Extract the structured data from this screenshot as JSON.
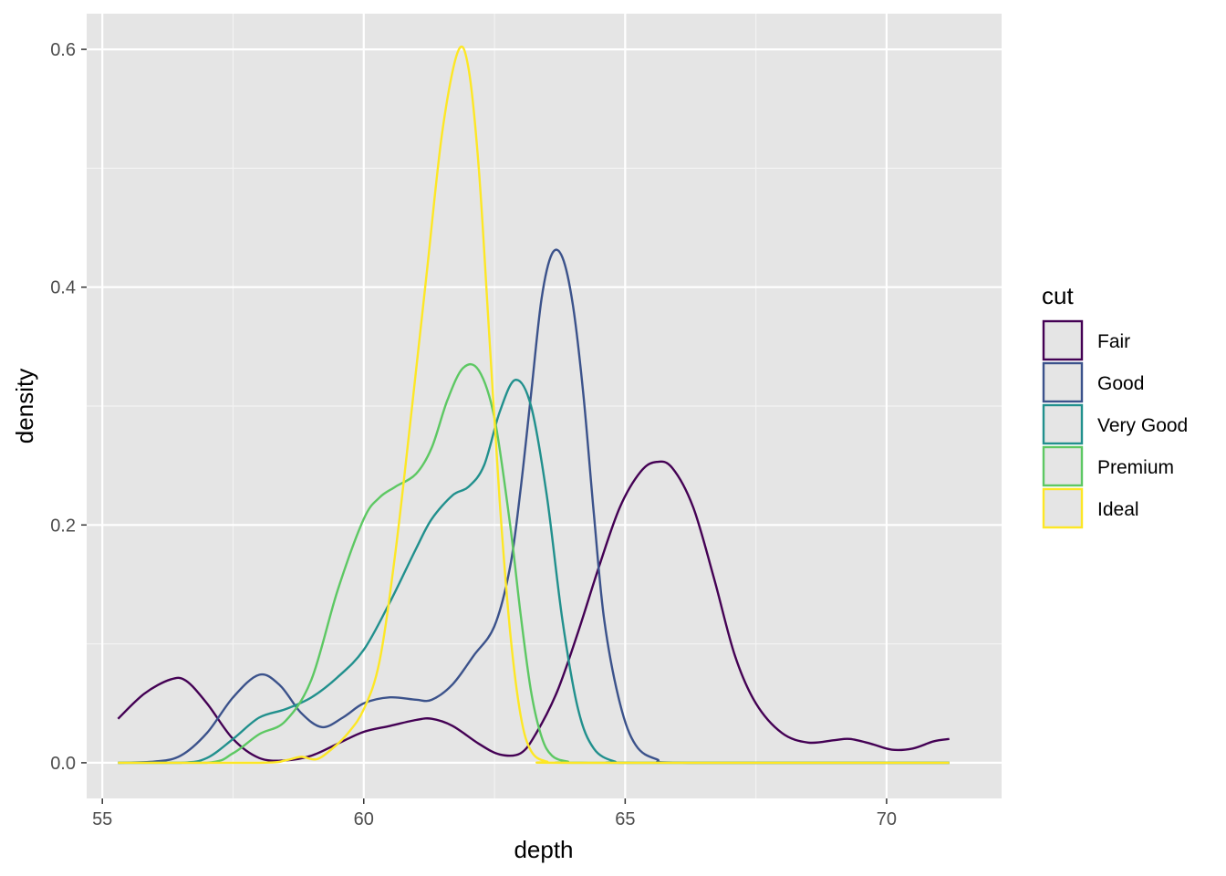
{
  "chart_data": {
    "type": "line",
    "xlabel": "depth",
    "ylabel": "density",
    "xlim": [
      54.7,
      72.2
    ],
    "ylim": [
      -0.03,
      0.63
    ],
    "x_ticks": [
      55,
      60,
      65,
      70
    ],
    "x_tick_labels": [
      "55",
      "60",
      "65",
      "70"
    ],
    "y_ticks": [
      0.0,
      0.2,
      0.4,
      0.6
    ],
    "y_tick_labels": [
      "0.0",
      "0.2",
      "0.4",
      "0.6"
    ],
    "grid": true,
    "panel_background": "#e5e5e5",
    "legend": {
      "title": "cut",
      "placement": "right"
    },
    "series": [
      {
        "name": "Fair",
        "color": "#440154",
        "points": [
          [
            55.3,
            0.037
          ],
          [
            55.8,
            0.058
          ],
          [
            56.3,
            0.07
          ],
          [
            56.6,
            0.069
          ],
          [
            57.0,
            0.05
          ],
          [
            57.5,
            0.02
          ],
          [
            58.0,
            0.004
          ],
          [
            58.5,
            0.002
          ],
          [
            59.0,
            0.006
          ],
          [
            59.5,
            0.016
          ],
          [
            60.0,
            0.026
          ],
          [
            60.5,
            0.031
          ],
          [
            61.0,
            0.036
          ],
          [
            61.3,
            0.037
          ],
          [
            61.7,
            0.031
          ],
          [
            62.2,
            0.016
          ],
          [
            62.6,
            0.007
          ],
          [
            63.0,
            0.008
          ],
          [
            63.3,
            0.025
          ],
          [
            63.7,
            0.06
          ],
          [
            64.1,
            0.11
          ],
          [
            64.5,
            0.165
          ],
          [
            64.9,
            0.215
          ],
          [
            65.3,
            0.245
          ],
          [
            65.6,
            0.253
          ],
          [
            65.9,
            0.248
          ],
          [
            66.3,
            0.215
          ],
          [
            66.7,
            0.155
          ],
          [
            67.1,
            0.09
          ],
          [
            67.5,
            0.05
          ],
          [
            68.0,
            0.025
          ],
          [
            68.5,
            0.017
          ],
          [
            69.0,
            0.019
          ],
          [
            69.3,
            0.02
          ],
          [
            69.7,
            0.016
          ],
          [
            70.1,
            0.011
          ],
          [
            70.5,
            0.012
          ],
          [
            70.9,
            0.018
          ],
          [
            71.2,
            0.02
          ]
        ]
      },
      {
        "name": "Good",
        "color": "#3b528b",
        "points": [
          [
            55.3,
            0.0
          ],
          [
            56.0,
            0.001
          ],
          [
            56.5,
            0.006
          ],
          [
            57.0,
            0.025
          ],
          [
            57.5,
            0.055
          ],
          [
            58.0,
            0.074
          ],
          [
            58.4,
            0.065
          ],
          [
            58.8,
            0.042
          ],
          [
            59.2,
            0.03
          ],
          [
            59.6,
            0.038
          ],
          [
            60.0,
            0.05
          ],
          [
            60.5,
            0.055
          ],
          [
            61.0,
            0.053
          ],
          [
            61.3,
            0.053
          ],
          [
            61.7,
            0.066
          ],
          [
            62.1,
            0.09
          ],
          [
            62.5,
            0.115
          ],
          [
            62.8,
            0.165
          ],
          [
            63.0,
            0.23
          ],
          [
            63.2,
            0.31
          ],
          [
            63.4,
            0.39
          ],
          [
            63.6,
            0.428
          ],
          [
            63.8,
            0.425
          ],
          [
            64.0,
            0.385
          ],
          [
            64.2,
            0.31
          ],
          [
            64.4,
            0.21
          ],
          [
            64.6,
            0.12
          ],
          [
            64.9,
            0.05
          ],
          [
            65.2,
            0.015
          ],
          [
            65.6,
            0.003
          ],
          [
            66.2,
            0.0
          ],
          [
            71.2,
            0.0
          ]
        ]
      },
      {
        "name": "Very Good",
        "color": "#21908d",
        "points": [
          [
            55.3,
            0.0
          ],
          [
            56.5,
            0.0
          ],
          [
            57.0,
            0.004
          ],
          [
            57.5,
            0.02
          ],
          [
            58.0,
            0.038
          ],
          [
            58.5,
            0.045
          ],
          [
            59.0,
            0.055
          ],
          [
            59.5,
            0.072
          ],
          [
            60.0,
            0.095
          ],
          [
            60.5,
            0.135
          ],
          [
            61.0,
            0.18
          ],
          [
            61.3,
            0.205
          ],
          [
            61.7,
            0.225
          ],
          [
            62.0,
            0.232
          ],
          [
            62.3,
            0.25
          ],
          [
            62.6,
            0.295
          ],
          [
            62.9,
            0.322
          ],
          [
            63.2,
            0.3
          ],
          [
            63.5,
            0.225
          ],
          [
            63.8,
            0.12
          ],
          [
            64.1,
            0.045
          ],
          [
            64.4,
            0.012
          ],
          [
            64.8,
            0.001
          ],
          [
            65.2,
            0.0
          ],
          [
            71.2,
            0.0
          ]
        ]
      },
      {
        "name": "Premium",
        "color": "#5dc863",
        "points": [
          [
            55.3,
            0.0
          ],
          [
            57.0,
            0.0
          ],
          [
            57.5,
            0.008
          ],
          [
            58.0,
            0.024
          ],
          [
            58.5,
            0.035
          ],
          [
            59.0,
            0.07
          ],
          [
            59.5,
            0.145
          ],
          [
            60.0,
            0.205
          ],
          [
            60.3,
            0.223
          ],
          [
            60.6,
            0.232
          ],
          [
            61.0,
            0.243
          ],
          [
            61.3,
            0.265
          ],
          [
            61.6,
            0.305
          ],
          [
            61.9,
            0.332
          ],
          [
            62.2,
            0.33
          ],
          [
            62.5,
            0.29
          ],
          [
            62.8,
            0.2
          ],
          [
            63.0,
            0.125
          ],
          [
            63.2,
            0.06
          ],
          [
            63.4,
            0.022
          ],
          [
            63.6,
            0.006
          ],
          [
            63.9,
            0.001
          ],
          [
            64.3,
            0.0
          ],
          [
            71.2,
            0.0
          ]
        ]
      },
      {
        "name": "Ideal",
        "color": "#fde725",
        "points": [
          [
            55.3,
            0.0
          ],
          [
            58.0,
            0.0
          ],
          [
            58.5,
            0.002
          ],
          [
            58.8,
            0.005
          ],
          [
            59.1,
            0.003
          ],
          [
            59.4,
            0.012
          ],
          [
            59.7,
            0.025
          ],
          [
            60.0,
            0.045
          ],
          [
            60.3,
            0.085
          ],
          [
            60.6,
            0.175
          ],
          [
            60.9,
            0.29
          ],
          [
            61.2,
            0.41
          ],
          [
            61.5,
            0.53
          ],
          [
            61.8,
            0.598
          ],
          [
            62.0,
            0.585
          ],
          [
            62.2,
            0.5
          ],
          [
            62.4,
            0.36
          ],
          [
            62.6,
            0.22
          ],
          [
            62.8,
            0.11
          ],
          [
            63.0,
            0.04
          ],
          [
            63.2,
            0.01
          ],
          [
            63.5,
            0.001
          ],
          [
            64.0,
            0.0
          ],
          [
            71.2,
            0.0
          ]
        ]
      }
    ]
  }
}
